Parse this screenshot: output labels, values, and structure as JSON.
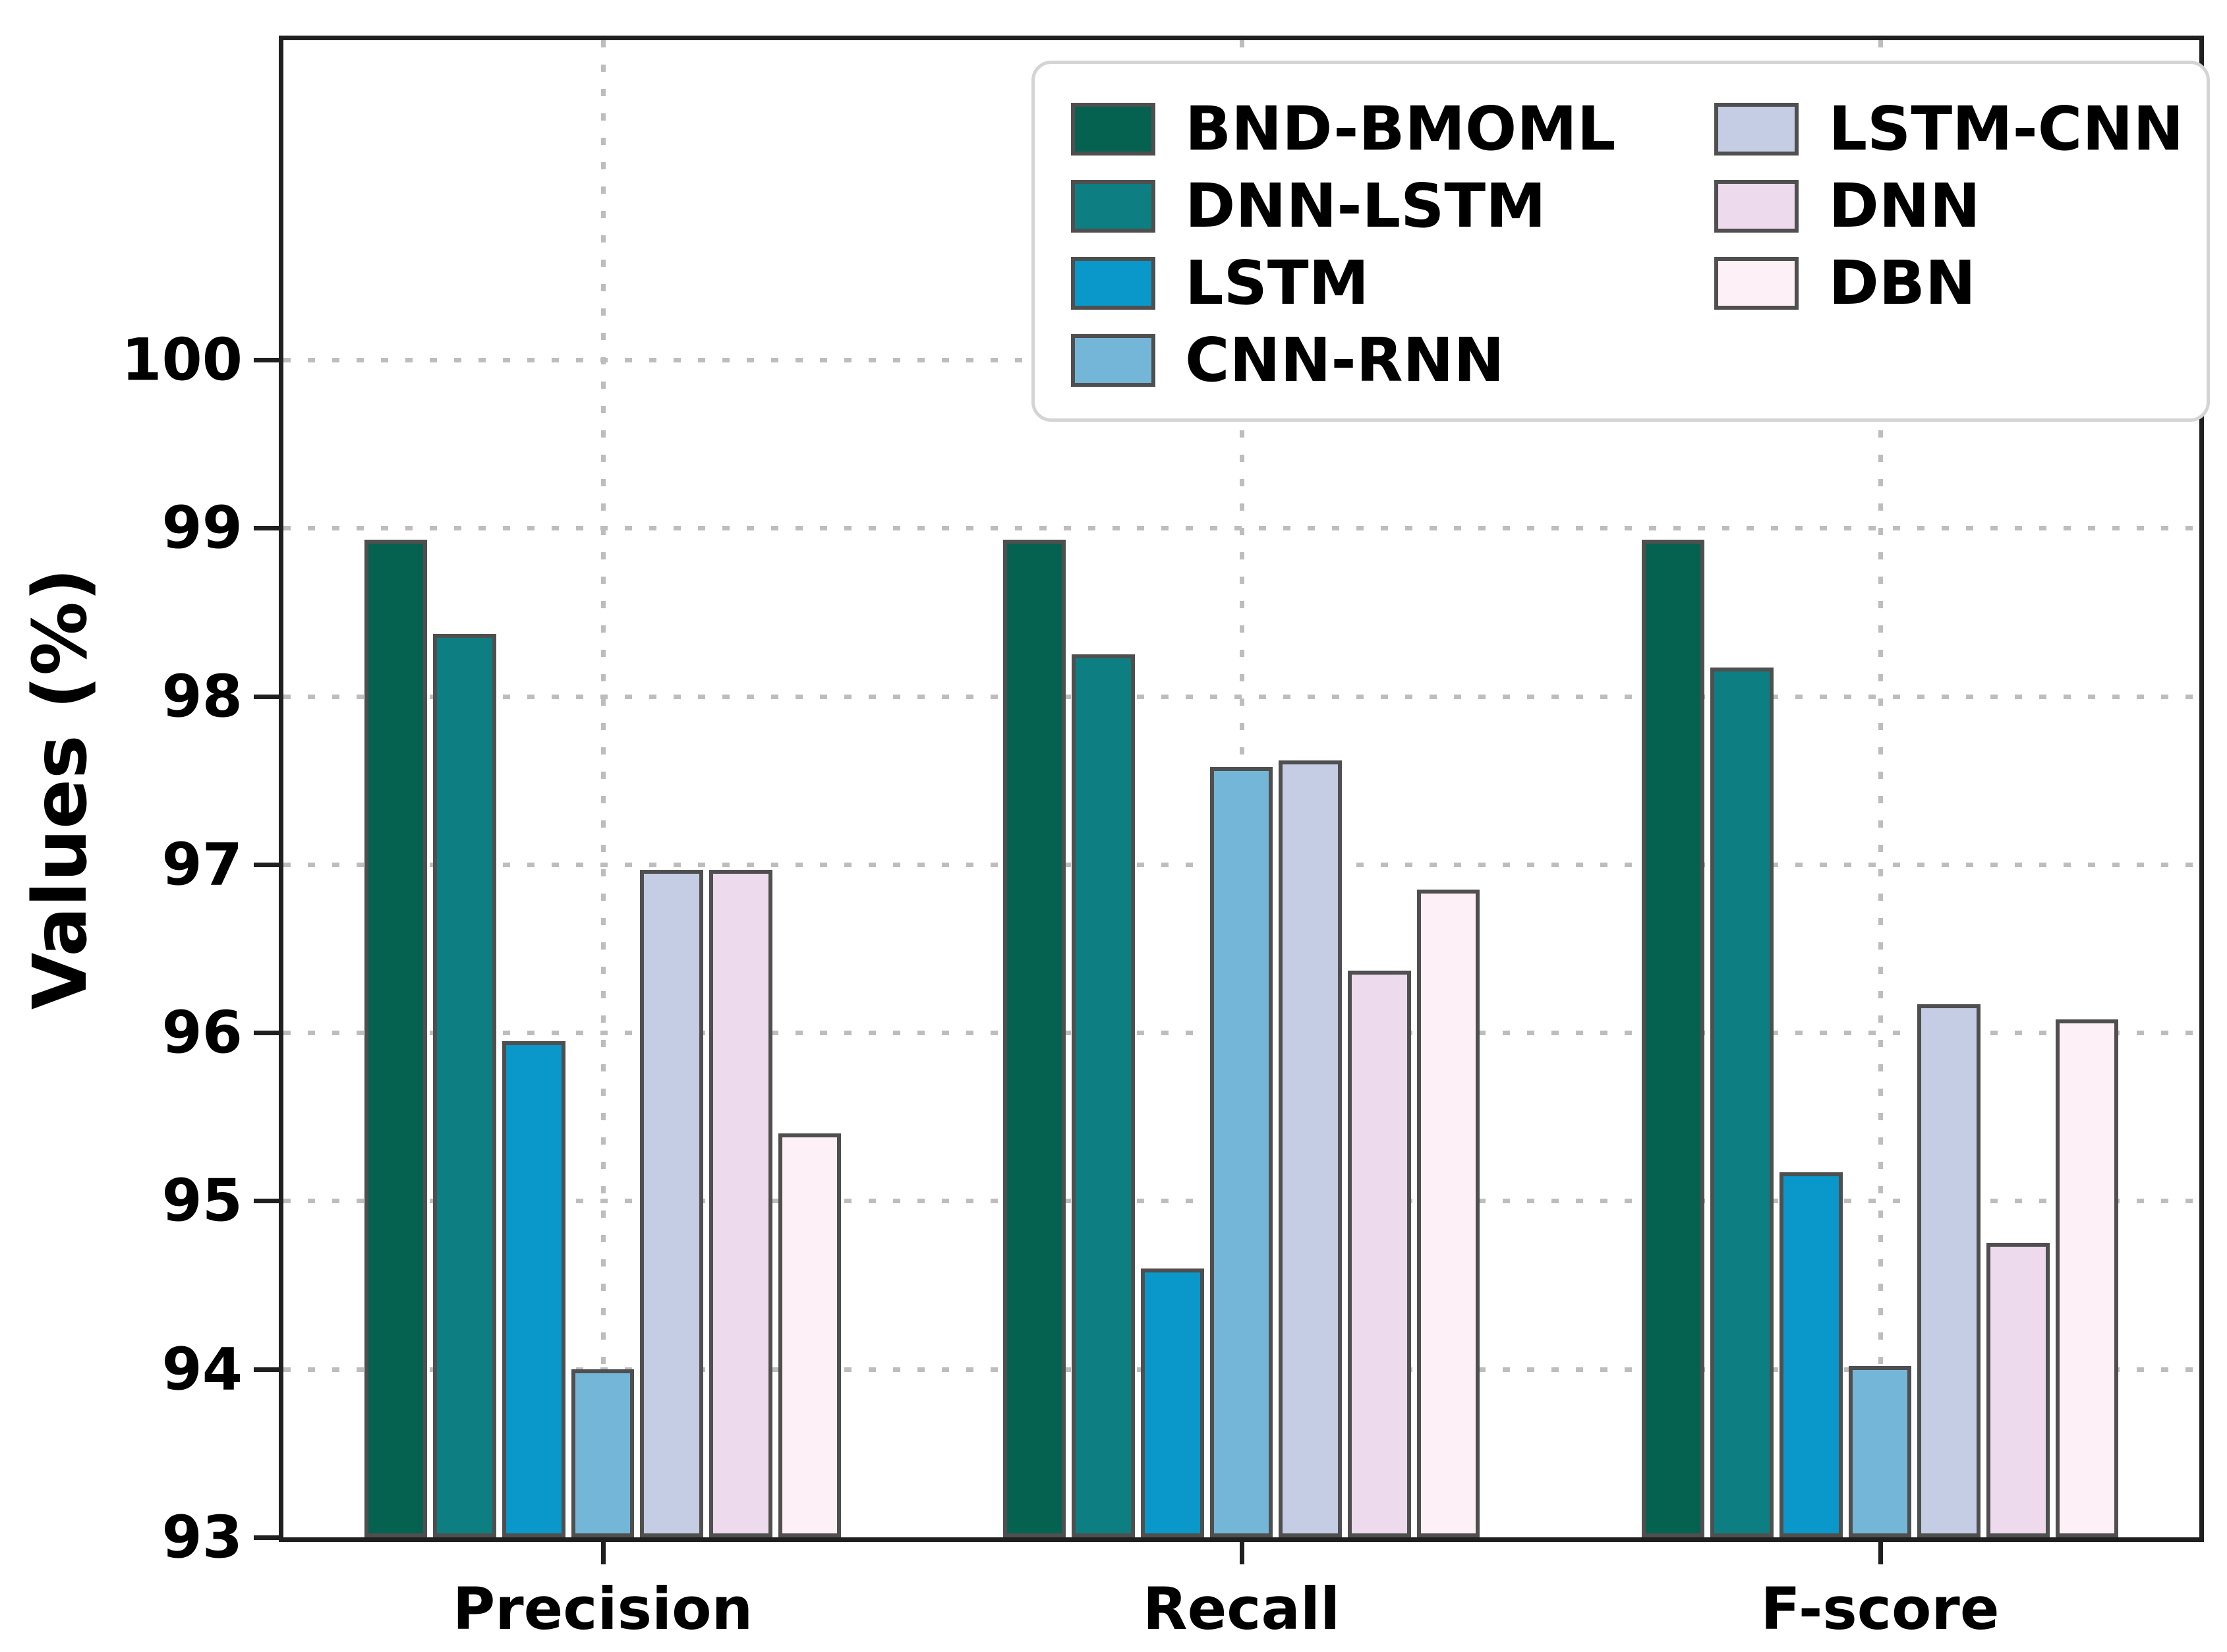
{
  "chart_data": {
    "type": "bar",
    "title": "",
    "xlabel": "",
    "ylabel": "Values (%)",
    "categories": [
      "Precision",
      "Recall",
      "F-score"
    ],
    "series": [
      {
        "name": "BND-BMOML",
        "color": "#066250",
        "values": [
          98.93,
          98.93,
          98.93
        ]
      },
      {
        "name": "DNN-LSTM",
        "color": "#0d7f82",
        "values": [
          98.37,
          98.25,
          98.17
        ]
      },
      {
        "name": "LSTM",
        "color": "#0998c9",
        "values": [
          95.95,
          94.6,
          95.17
        ]
      },
      {
        "name": "CNN-RNN",
        "color": "#74b6d8",
        "values": [
          94.0,
          97.58,
          94.02
        ]
      },
      {
        "name": "LSTM-CNN",
        "color": "#c5cde5",
        "values": [
          96.97,
          97.62,
          96.17
        ]
      },
      {
        "name": "DNN",
        "color": "#eddaed",
        "values": [
          96.97,
          96.37,
          94.75
        ]
      },
      {
        "name": "DBN",
        "color": "#fdf0f7",
        "values": [
          95.4,
          96.85,
          96.08
        ]
      }
    ],
    "ylim": [
      93,
      101.9
    ],
    "yticks": [
      93,
      94,
      95,
      96,
      97,
      98,
      99,
      100
    ],
    "grid": true,
    "legend": {
      "position": "upper-right",
      "columns": [
        [
          "BND-BMOML",
          "DNN-LSTM",
          "LSTM",
          "CNN-RNN"
        ],
        [
          "LSTM-CNN",
          "DNN",
          "DBN"
        ]
      ]
    },
    "styles": {
      "bar_edge": "#4f4f4f",
      "spine": "#1f1f1f",
      "gridline": "#bdbdbd",
      "text": "#000000",
      "legend_border": "#d4d4d4",
      "legend_bg": "#ffffff"
    }
  }
}
